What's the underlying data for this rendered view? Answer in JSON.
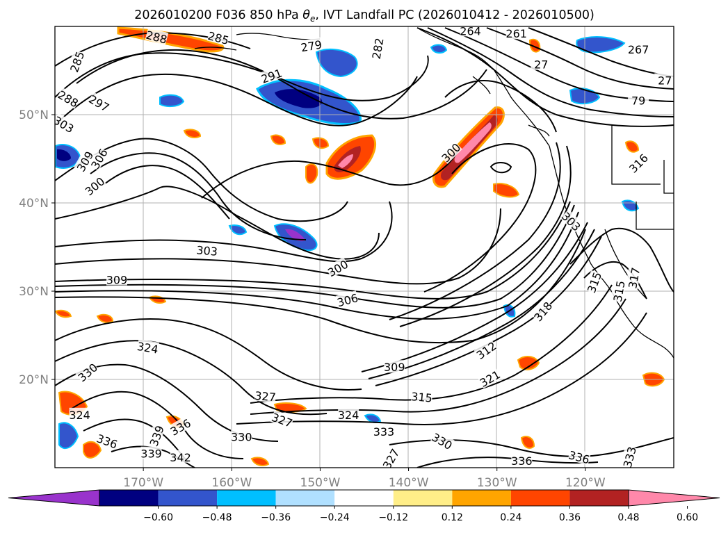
{
  "chart_data": {
    "type": "heatmap",
    "title_parts": {
      "prefix": "2026010200 F036 850 hPa ",
      "symbol": "θ",
      "subscript": "e",
      "suffix": ", IVT Landfall PC (2026010412 - 2026010500)"
    },
    "lon_range": [
      -180,
      -110
    ],
    "lat_range": [
      10,
      60
    ],
    "x_ticks": [
      {
        "value": -170,
        "label": "170°W"
      },
      {
        "value": -160,
        "label": "160°W"
      },
      {
        "value": -150,
        "label": "150°W"
      },
      {
        "value": -140,
        "label": "140°W"
      },
      {
        "value": -130,
        "label": "130°W"
      },
      {
        "value": -120,
        "label": "120°W"
      }
    ],
    "y_ticks": [
      {
        "value": 20,
        "label": "20°N"
      },
      {
        "value": 30,
        "label": "30°N"
      },
      {
        "value": 40,
        "label": "40°N"
      },
      {
        "value": 50,
        "label": "50°N"
      }
    ],
    "grid": true,
    "colorbar": {
      "levels": [
        -0.6,
        -0.48,
        -0.36,
        -0.24,
        -0.12,
        0.12,
        0.24,
        0.36,
        0.48,
        0.6
      ],
      "tick_labels": [
        "−0.60",
        "−0.48",
        "−0.36",
        "−0.24",
        "−0.12",
        "0.12",
        "0.24",
        "0.36",
        "0.48",
        "0.60"
      ],
      "colors": [
        "#9933cc",
        "#000080",
        "#3355cc",
        "#00bfff",
        "#b0e0ff",
        "#ffffff",
        "#ffee88",
        "#ffa500",
        "#ff4500",
        "#b22222",
        "#ff88aa"
      ],
      "extend": "both",
      "orientation": "horizontal",
      "placement": "bottom"
    },
    "contour_labels": [
      {
        "text": "288",
        "lon": -168.5,
        "lat": 58.8,
        "rot": 15
      },
      {
        "text": "285",
        "lon": -161.5,
        "lat": 58.7,
        "rot": 15
      },
      {
        "text": "279",
        "lon": -151.0,
        "lat": 57.8,
        "rot": -10
      },
      {
        "text": "282",
        "lon": -143.5,
        "lat": 57.5,
        "rot": -80
      },
      {
        "text": "264",
        "lon": -133.0,
        "lat": 59.5,
        "rot": 0
      },
      {
        "text": "261",
        "lon": -127.8,
        "lat": 59.2,
        "rot": 0
      },
      {
        "text": "267",
        "lon": -114.0,
        "lat": 57.4,
        "rot": 0
      },
      {
        "text": "27",
        "lon": -125.0,
        "lat": 55.7,
        "rot": 0
      },
      {
        "text": "27",
        "lon": -111.0,
        "lat": 53.9,
        "rot": 0
      },
      {
        "text": "79",
        "lon": -114.0,
        "lat": 51.6,
        "rot": 0
      },
      {
        "text": "285",
        "lon": -177.5,
        "lat": 56.0,
        "rot": -70
      },
      {
        "text": "288",
        "lon": -178.5,
        "lat": 51.8,
        "rot": 30
      },
      {
        "text": "297",
        "lon": -175.0,
        "lat": 51.3,
        "rot": 30
      },
      {
        "text": "291",
        "lon": -155.5,
        "lat": 54.4,
        "rot": -20
      },
      {
        "text": "303",
        "lon": -179.0,
        "lat": 48.9,
        "rot": 30
      },
      {
        "text": "309",
        "lon": -176.6,
        "lat": 44.7,
        "rot": -60
      },
      {
        "text": "306",
        "lon": -175.0,
        "lat": 45.0,
        "rot": -60
      },
      {
        "text": "300",
        "lon": -175.5,
        "lat": 41.9,
        "rot": -40
      },
      {
        "text": "300",
        "lon": -135.2,
        "lat": 45.7,
        "rot": -45
      },
      {
        "text": "303",
        "lon": -121.6,
        "lat": 37.9,
        "rot": 45
      },
      {
        "text": "316",
        "lon": -114.0,
        "lat": 44.5,
        "rot": -45
      },
      {
        "text": "303",
        "lon": -162.8,
        "lat": 34.6,
        "rot": 5
      },
      {
        "text": "300",
        "lon": -148.0,
        "lat": 32.6,
        "rot": -30
      },
      {
        "text": "309",
        "lon": -173.0,
        "lat": 31.3,
        "rot": 0
      },
      {
        "text": "306",
        "lon": -146.9,
        "lat": 29.0,
        "rot": -15
      },
      {
        "text": "315",
        "lon": -119.0,
        "lat": 31.0,
        "rot": -70
      },
      {
        "text": "315",
        "lon": -116.2,
        "lat": 30.0,
        "rot": -80
      },
      {
        "text": "317",
        "lon": -114.5,
        "lat": 31.5,
        "rot": -80
      },
      {
        "text": "318",
        "lon": -124.8,
        "lat": 27.7,
        "rot": -50
      },
      {
        "text": "324",
        "lon": -169.5,
        "lat": 23.6,
        "rot": 10
      },
      {
        "text": "330",
        "lon": -176.3,
        "lat": 20.8,
        "rot": -40
      },
      {
        "text": "312",
        "lon": -131.2,
        "lat": 23.3,
        "rot": -35
      },
      {
        "text": "309",
        "lon": -141.6,
        "lat": 21.4,
        "rot": 0
      },
      {
        "text": "321",
        "lon": -130.8,
        "lat": 20.1,
        "rot": -30
      },
      {
        "text": "327",
        "lon": -156.2,
        "lat": 18.1,
        "rot": 5
      },
      {
        "text": "315",
        "lon": -138.5,
        "lat": 18.0,
        "rot": 5
      },
      {
        "text": "324",
        "lon": -177.2,
        "lat": 16.0,
        "rot": 0
      },
      {
        "text": "327",
        "lon": -154.3,
        "lat": 15.4,
        "rot": 20
      },
      {
        "text": "324",
        "lon": -146.8,
        "lat": 16.0,
        "rot": 0
      },
      {
        "text": "336",
        "lon": -165.8,
        "lat": 14.6,
        "rot": -30
      },
      {
        "text": "333",
        "lon": -142.8,
        "lat": 14.1,
        "rot": 0
      },
      {
        "text": "330",
        "lon": -158.9,
        "lat": 13.5,
        "rot": 0
      },
      {
        "text": "330",
        "lon": -136.2,
        "lat": 13.0,
        "rot": 30
      },
      {
        "text": "336",
        "lon": -174.1,
        "lat": 13.0,
        "rot": 20
      },
      {
        "text": "339",
        "lon": -169.1,
        "lat": 11.6,
        "rot": 0
      },
      {
        "text": "339",
        "lon": -168.5,
        "lat": 13.6,
        "rot": -70
      },
      {
        "text": "342",
        "lon": -165.8,
        "lat": 11.2,
        "rot": 0
      },
      {
        "text": "327",
        "lon": -142.0,
        "lat": 11.0,
        "rot": -60
      },
      {
        "text": "336",
        "lon": -127.2,
        "lat": 10.8,
        "rot": 0
      },
      {
        "text": "336",
        "lon": -120.7,
        "lat": 11.2,
        "rot": 15
      },
      {
        "text": "333",
        "lon": -115.0,
        "lat": 11.2,
        "rot": -75
      }
    ]
  }
}
